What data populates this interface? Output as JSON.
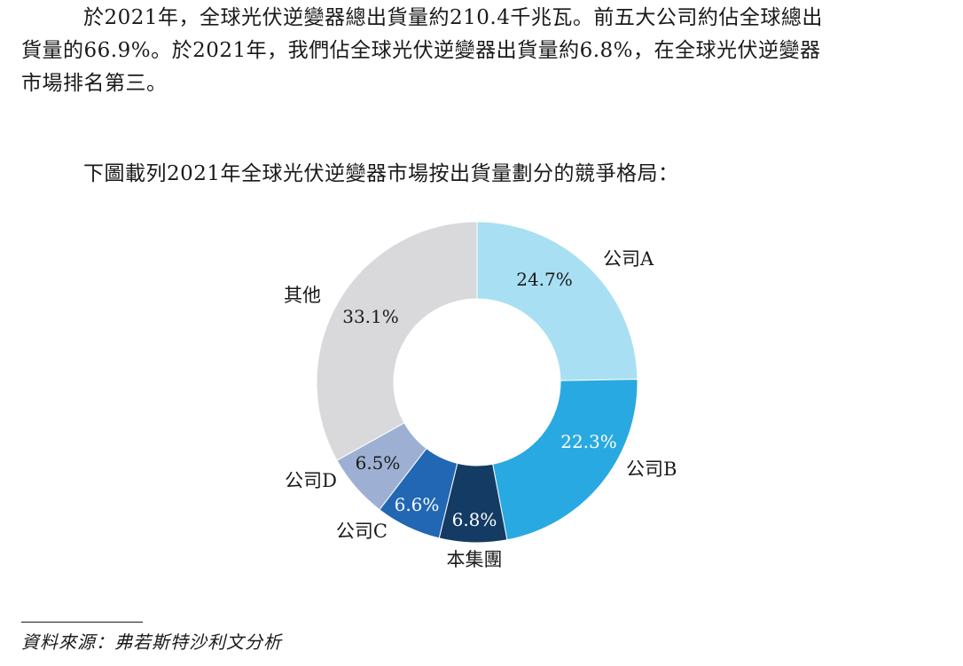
{
  "intro_text": {
    "line1": "於2021年，全球光伏逆變器總出貨量約210.4千兆瓦。前五大公司約佔全球總出",
    "line2": "貨量的66.9%。於2021年，我們佔全球光伏逆變器出貨量約6.8%，在全球光伏逆變器",
    "line3": "市場排名第三。"
  },
  "chart_intro": "下圖載列2021年全球光伏逆變器市場按出貨量劃分的競爭格局：",
  "chart_data": {
    "type": "pie",
    "donut": true,
    "slices": [
      {
        "label": "公司A",
        "value": 24.7,
        "value_label": "24.7%",
        "color": "#a8dff3",
        "value_text_color": "#1a1a1a"
      },
      {
        "label": "公司B",
        "value": 22.3,
        "value_label": "22.3%",
        "color": "#29a9e1",
        "value_text_color": "#ffffff"
      },
      {
        "label": "本集團",
        "value": 6.8,
        "value_label": "6.8%",
        "color": "#143b63",
        "value_text_color": "#ffffff"
      },
      {
        "label": "公司C",
        "value": 6.6,
        "value_label": "6.6%",
        "color": "#2167b4",
        "value_text_color": "#ffffff"
      },
      {
        "label": "公司D",
        "value": 6.5,
        "value_label": "6.5%",
        "color": "#9db0d4",
        "value_text_color": "#1a1a1a"
      },
      {
        "label": "其他",
        "value": 33.1,
        "value_label": "33.1%",
        "color": "#d9d9db",
        "value_text_color": "#1a1a1a"
      }
    ],
    "start": "12 o'clock",
    "direction": "clockwise",
    "legend": "none"
  },
  "source_note": "資料來源：弗若斯特沙利文分析"
}
